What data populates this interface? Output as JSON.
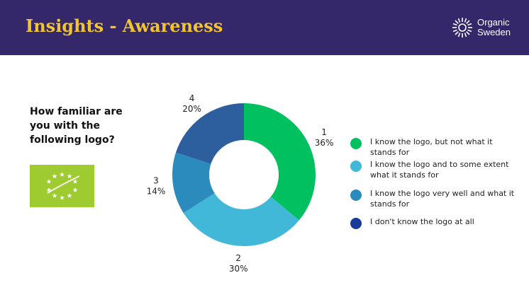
{
  "header": {
    "title": "Insights - Awareness",
    "brand_line1": "Organic",
    "brand_line2": "Sweden",
    "brand_icon": "sun-burst-icon",
    "background": "#34286a",
    "title_color": "#f3c52c"
  },
  "question": "How familiar are you with the following logo?",
  "logo": {
    "icon": "eu-organic-leaf-logo",
    "color": "#9ecb2f"
  },
  "chart_data": {
    "type": "pie",
    "donut": true,
    "categories": [
      "1",
      "2",
      "3",
      "4"
    ],
    "values": [
      36,
      30,
      14,
      20
    ],
    "value_labels": [
      "36%",
      "30%",
      "14%",
      "20%"
    ],
    "colors": [
      "#00c060",
      "#42b8d9",
      "#2b8bbd",
      "#2d5f9e"
    ],
    "legend": [
      {
        "label": "I know the logo, but not what it stands for",
        "color": "#00c060"
      },
      {
        "label": "I know the logo and to some extent what it stands for",
        "color": "#42b8d9"
      },
      {
        "label": "I know the logo very well and what it stands for",
        "color": "#2b8bbd"
      },
      {
        "label": "I don't know the logo at all",
        "color": "#1a3a9a"
      }
    ],
    "legend_position": "right"
  }
}
